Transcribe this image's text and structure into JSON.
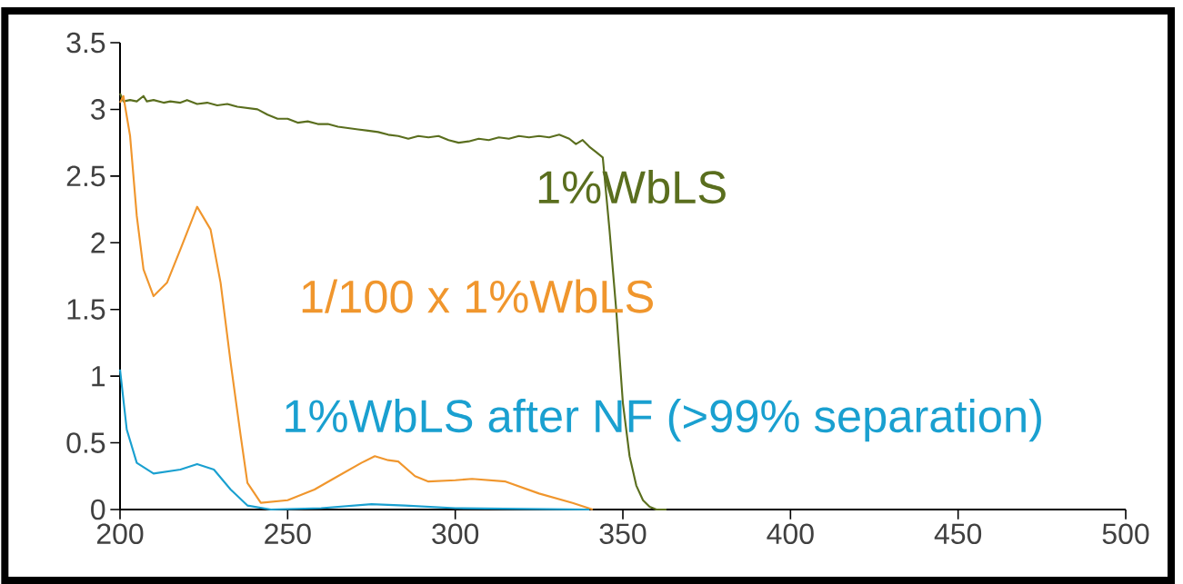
{
  "chart_data": {
    "type": "line",
    "xlim": [
      200,
      500
    ],
    "ylim": [
      0,
      3.5
    ],
    "xticks": [
      200,
      250,
      300,
      350,
      400,
      450,
      500
    ],
    "yticks": [
      0,
      0.5,
      1,
      1.5,
      2,
      2.5,
      3,
      3.5
    ],
    "grid": false,
    "legend": false,
    "marker": "none",
    "line_style": "solid",
    "series": [
      {
        "name": "1%WbLS",
        "color": "#5a6e1e",
        "x": [
          200,
          201,
          203,
          205,
          207,
          208,
          210,
          213,
          215,
          218,
          220,
          223,
          226,
          229,
          232,
          235,
          238,
          241,
          244,
          247,
          250,
          253,
          256,
          259,
          262,
          265,
          268,
          271,
          274,
          277,
          280,
          283,
          286,
          289,
          292,
          295,
          298,
          301,
          304,
          307,
          310,
          313,
          316,
          319,
          322,
          325,
          328,
          331,
          334,
          336,
          338,
          340,
          342,
          344,
          346,
          348,
          350,
          352,
          354,
          356,
          358,
          360,
          363
        ],
        "values": [
          3.12,
          3.06,
          3.07,
          3.06,
          3.1,
          3.06,
          3.07,
          3.05,
          3.06,
          3.05,
          3.07,
          3.04,
          3.05,
          3.03,
          3.04,
          3.02,
          3.01,
          3.0,
          2.96,
          2.93,
          2.93,
          2.9,
          2.91,
          2.89,
          2.89,
          2.87,
          2.86,
          2.85,
          2.84,
          2.83,
          2.81,
          2.8,
          2.78,
          2.8,
          2.79,
          2.8,
          2.77,
          2.75,
          2.76,
          2.78,
          2.77,
          2.79,
          2.78,
          2.8,
          2.79,
          2.8,
          2.79,
          2.81,
          2.78,
          2.74,
          2.77,
          2.72,
          2.68,
          2.64,
          2.1,
          1.5,
          0.8,
          0.4,
          0.18,
          0.07,
          0.02,
          0.0,
          0.0
        ]
      },
      {
        "name": "1/100 x 1%WbLS",
        "color": "#f0962d",
        "x": [
          200,
          201,
          203,
          205,
          207,
          210,
          214,
          218,
          223,
          227,
          230,
          233,
          236,
          238,
          242,
          250,
          258,
          265,
          272,
          276,
          280,
          283,
          288,
          292,
          300,
          305,
          315,
          325,
          335,
          341
        ],
        "values": [
          3.05,
          3.1,
          2.8,
          2.2,
          1.8,
          1.6,
          1.7,
          1.95,
          2.27,
          2.1,
          1.7,
          1.1,
          0.55,
          0.2,
          0.05,
          0.07,
          0.15,
          0.25,
          0.35,
          0.4,
          0.37,
          0.36,
          0.25,
          0.21,
          0.22,
          0.23,
          0.21,
          0.12,
          0.05,
          0.0
        ]
      },
      {
        "name": "1%WbLS after NF (>99% separation)",
        "color": "#1aa0d0",
        "x": [
          200,
          202,
          205,
          210,
          218,
          223,
          228,
          233,
          238,
          245,
          260,
          275,
          285,
          300,
          340
        ],
        "values": [
          1.05,
          0.6,
          0.35,
          0.27,
          0.3,
          0.34,
          0.3,
          0.15,
          0.03,
          0.0,
          0.01,
          0.04,
          0.03,
          0.01,
          0.0
        ]
      }
    ]
  }
}
